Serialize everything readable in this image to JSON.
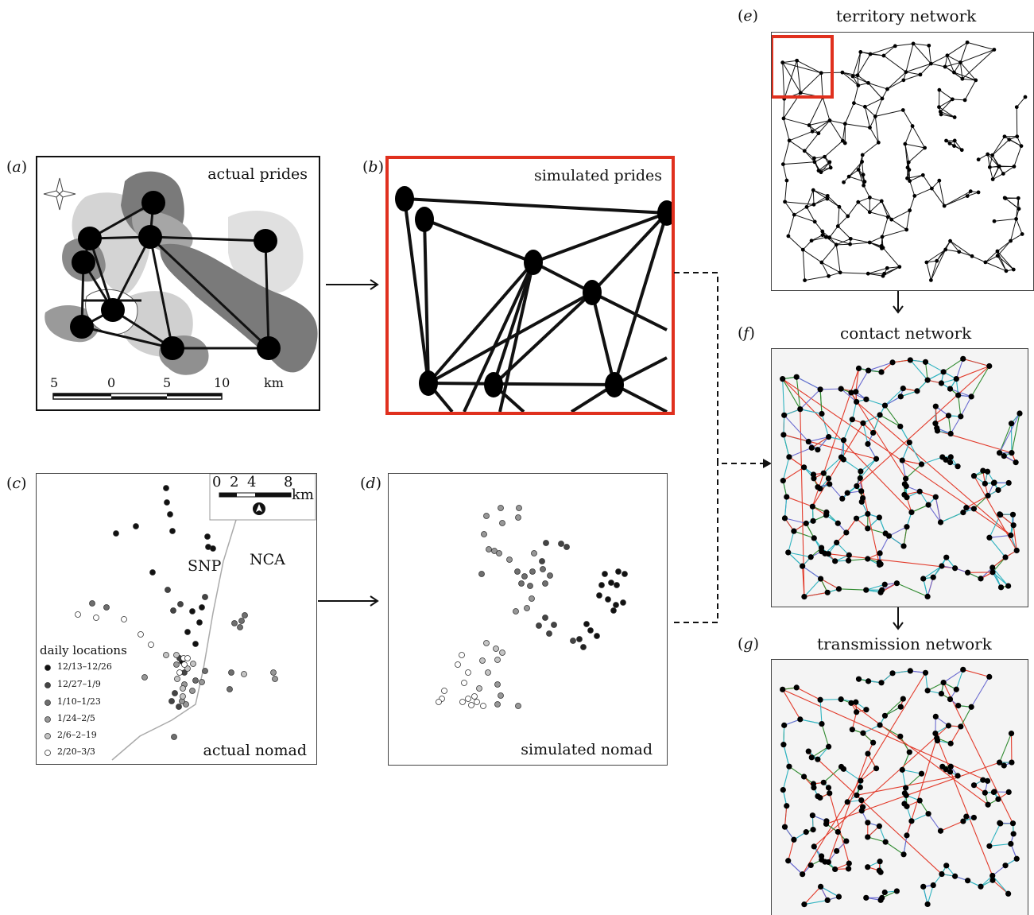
{
  "panels": {
    "a": {
      "label_letter": "a",
      "title": "actual prides",
      "scale_ticks": [
        "5",
        "0",
        "5",
        "10"
      ],
      "scale_unit": "km"
    },
    "b": {
      "label_letter": "b",
      "title": "simulated prides"
    },
    "c": {
      "label_letter": "c",
      "title": "actual nomad",
      "region_left": "SNP",
      "region_right": "NCA",
      "scale_ticks": [
        "0",
        "2",
        "4",
        "8"
      ],
      "scale_unit": "km",
      "legend_title": "daily locations",
      "legend_items": [
        {
          "label": "12/13–12/26",
          "color": "#111111"
        },
        {
          "label": "12/27–1/9",
          "color": "#444444"
        },
        {
          "label": "1/10–1/23",
          "color": "#6e6e6e"
        },
        {
          "label": "1/24–2/5",
          "color": "#979797"
        },
        {
          "label": "2/6–2–19",
          "color": "#c4c4c4"
        },
        {
          "label": "2/20–3/3",
          "color": "#ffffff"
        }
      ]
    },
    "d": {
      "label_letter": "d",
      "title": "simulated nomad"
    },
    "e": {
      "label_letter": "e",
      "title": "territory network"
    },
    "f": {
      "label_letter": "f",
      "title": "contact network"
    },
    "g": {
      "label_letter": "g",
      "title": "transmission network"
    }
  },
  "colors": {
    "highlight": "#e0301e",
    "edge_red": "#e23a2a",
    "edge_green": "#2f8a2f",
    "edge_cyan": "#2fb3c0",
    "edge_blue": "#6b6bd0",
    "pride_dark": "#7a7a7a",
    "pride_mid": "#a6a6a6",
    "pride_light": "#d4d4d4"
  }
}
